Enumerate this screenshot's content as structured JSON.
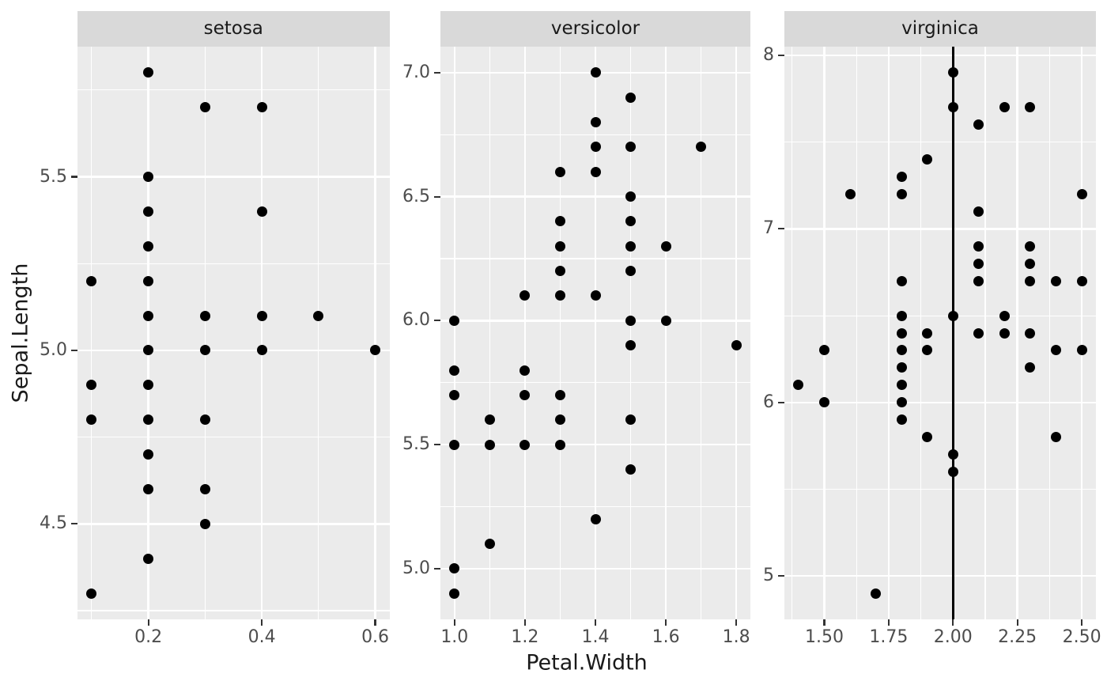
{
  "chart_data": {
    "type": "scatter",
    "title": "",
    "xlabel": "Petal.Width",
    "ylabel": "Sepal.Length",
    "legend": "none",
    "grid": "on",
    "facets": [
      {
        "label": "setosa",
        "xlim": [
          0.075,
          0.625
        ],
        "ylim": [
          4.225,
          5.875
        ],
        "x_ticks": [
          0.2,
          0.4,
          0.6
        ],
        "x_tick_labels": [
          "0.2",
          "0.4",
          "0.6"
        ],
        "x_minor": [
          0.1,
          0.3,
          0.5
        ],
        "y_ticks": [
          4.5,
          5.0,
          5.5
        ],
        "y_tick_labels": [
          "4.5",
          "5.0",
          "5.5"
        ],
        "y_minor": [
          4.25,
          4.75,
          5.25,
          5.75
        ],
        "points": [
          [
            0.1,
            4.3
          ],
          [
            0.1,
            4.8
          ],
          [
            0.1,
            4.9
          ],
          [
            0.1,
            5.2
          ],
          [
            0.2,
            4.4
          ],
          [
            0.2,
            4.6
          ],
          [
            0.2,
            4.7
          ],
          [
            0.2,
            4.8
          ],
          [
            0.2,
            4.9
          ],
          [
            0.2,
            5.0
          ],
          [
            0.2,
            5.1
          ],
          [
            0.2,
            5.2
          ],
          [
            0.2,
            5.3
          ],
          [
            0.2,
            5.4
          ],
          [
            0.2,
            5.5
          ],
          [
            0.2,
            5.8
          ],
          [
            0.3,
            4.5
          ],
          [
            0.3,
            4.6
          ],
          [
            0.3,
            4.8
          ],
          [
            0.3,
            5.0
          ],
          [
            0.3,
            5.1
          ],
          [
            0.3,
            5.7
          ],
          [
            0.4,
            5.0
          ],
          [
            0.4,
            5.1
          ],
          [
            0.4,
            5.4
          ],
          [
            0.4,
            5.7
          ],
          [
            0.5,
            5.1
          ],
          [
            0.6,
            5.0
          ]
        ]
      },
      {
        "label": "versicolor",
        "xlim": [
          0.96,
          1.84
        ],
        "ylim": [
          4.795,
          7.105
        ],
        "x_ticks": [
          1.0,
          1.2,
          1.4,
          1.6,
          1.8
        ],
        "x_tick_labels": [
          "1.0",
          "1.2",
          "1.4",
          "1.6",
          "1.8"
        ],
        "x_minor": [
          1.1,
          1.3,
          1.5,
          1.7
        ],
        "y_ticks": [
          5.0,
          5.5,
          6.0,
          6.5,
          7.0
        ],
        "y_tick_labels": [
          "5.0",
          "5.5",
          "6.0",
          "6.5",
          "7.0"
        ],
        "y_minor": [
          5.25,
          5.75,
          6.25,
          6.75
        ],
        "points": [
          [
            1.0,
            4.9
          ],
          [
            1.0,
            5.0
          ],
          [
            1.0,
            5.5
          ],
          [
            1.0,
            5.7
          ],
          [
            1.0,
            5.8
          ],
          [
            1.0,
            6.0
          ],
          [
            1.1,
            5.1
          ],
          [
            1.1,
            5.5
          ],
          [
            1.1,
            5.6
          ],
          [
            1.2,
            5.5
          ],
          [
            1.2,
            5.7
          ],
          [
            1.2,
            5.8
          ],
          [
            1.2,
            6.1
          ],
          [
            1.3,
            5.5
          ],
          [
            1.3,
            5.6
          ],
          [
            1.3,
            5.7
          ],
          [
            1.3,
            6.1
          ],
          [
            1.3,
            6.2
          ],
          [
            1.3,
            6.3
          ],
          [
            1.3,
            6.4
          ],
          [
            1.3,
            6.6
          ],
          [
            1.4,
            5.2
          ],
          [
            1.4,
            6.1
          ],
          [
            1.4,
            6.6
          ],
          [
            1.4,
            6.7
          ],
          [
            1.4,
            6.8
          ],
          [
            1.4,
            7.0
          ],
          [
            1.5,
            5.4
          ],
          [
            1.5,
            5.6
          ],
          [
            1.5,
            5.9
          ],
          [
            1.5,
            6.0
          ],
          [
            1.5,
            6.2
          ],
          [
            1.5,
            6.3
          ],
          [
            1.5,
            6.4
          ],
          [
            1.5,
            6.5
          ],
          [
            1.5,
            6.7
          ],
          [
            1.5,
            6.9
          ],
          [
            1.6,
            6.0
          ],
          [
            1.6,
            6.3
          ],
          [
            1.7,
            6.7
          ],
          [
            1.8,
            5.9
          ]
        ]
      },
      {
        "label": "virginica",
        "xlim": [
          1.345,
          2.555
        ],
        "ylim": [
          4.75,
          8.05
        ],
        "x_ticks": [
          1.5,
          1.75,
          2.0,
          2.25,
          2.5
        ],
        "x_tick_labels": [
          "1.50",
          "1.75",
          "2.00",
          "2.25",
          "2.50"
        ],
        "x_minor": [
          1.375,
          1.625,
          1.875,
          2.125,
          2.375
        ],
        "y_ticks": [
          5,
          6,
          7,
          8
        ],
        "y_tick_labels": [
          "5",
          "6",
          "7",
          "8"
        ],
        "y_minor": [
          5.5,
          6.5,
          7.5
        ],
        "vline_x": 2.0,
        "points": [
          [
            1.4,
            6.1
          ],
          [
            1.5,
            6.0
          ],
          [
            1.5,
            6.3
          ],
          [
            1.6,
            7.2
          ],
          [
            1.7,
            4.9
          ],
          [
            1.8,
            5.9
          ],
          [
            1.8,
            6.0
          ],
          [
            1.8,
            6.1
          ],
          [
            1.8,
            6.2
          ],
          [
            1.8,
            6.3
          ],
          [
            1.8,
            6.4
          ],
          [
            1.8,
            6.5
          ],
          [
            1.8,
            6.7
          ],
          [
            1.8,
            7.2
          ],
          [
            1.8,
            7.3
          ],
          [
            1.9,
            5.8
          ],
          [
            1.9,
            6.3
          ],
          [
            1.9,
            6.4
          ],
          [
            1.9,
            7.4
          ],
          [
            2.0,
            5.6
          ],
          [
            2.0,
            5.7
          ],
          [
            2.0,
            6.5
          ],
          [
            2.0,
            7.7
          ],
          [
            2.0,
            7.9
          ],
          [
            2.1,
            6.4
          ],
          [
            2.1,
            6.7
          ],
          [
            2.1,
            6.8
          ],
          [
            2.1,
            6.9
          ],
          [
            2.1,
            7.1
          ],
          [
            2.1,
            7.6
          ],
          [
            2.2,
            6.4
          ],
          [
            2.2,
            6.5
          ],
          [
            2.2,
            7.7
          ],
          [
            2.3,
            6.2
          ],
          [
            2.3,
            6.4
          ],
          [
            2.3,
            6.7
          ],
          [
            2.3,
            6.8
          ],
          [
            2.3,
            6.9
          ],
          [
            2.3,
            7.7
          ],
          [
            2.4,
            5.8
          ],
          [
            2.4,
            6.3
          ],
          [
            2.4,
            6.7
          ],
          [
            2.5,
            6.3
          ],
          [
            2.5,
            6.7
          ],
          [
            2.5,
            7.2
          ]
        ]
      }
    ],
    "style": {
      "background": "#FFFFFF",
      "panel_bg": "#EBEBEB",
      "strip_bg": "#D9D9D9",
      "strip_text": "#1A1A1A",
      "grid": "#FFFFFF",
      "axis_text": "#4D4D4D",
      "axis_title": "#1A1A1A",
      "tick": "#333333",
      "point": "#000000",
      "vline": "#000000"
    }
  }
}
